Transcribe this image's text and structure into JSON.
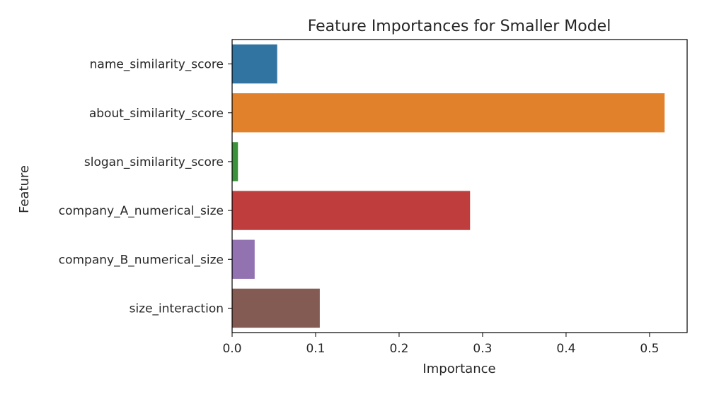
{
  "chart_data": {
    "type": "bar",
    "orientation": "horizontal",
    "title": "Feature Importances for Smaller Model",
    "xlabel": "Importance",
    "ylabel": "Feature",
    "categories": [
      "name_similarity_score",
      "about_similarity_score",
      "slogan_similarity_score",
      "company_A_numerical_size",
      "company_B_numerical_size",
      "size_interaction"
    ],
    "values": [
      0.054,
      0.518,
      0.007,
      0.285,
      0.027,
      0.105
    ],
    "colors": [
      "#3274a1",
      "#e1812c",
      "#3a923a",
      "#c03d3e",
      "#9372b2",
      "#845b53"
    ],
    "xlim": [
      0,
      0.545
    ],
    "xticks": [
      0.0,
      0.1,
      0.2,
      0.3,
      0.4,
      0.5
    ],
    "xtick_labels": [
      "0.0",
      "0.1",
      "0.2",
      "0.3",
      "0.4",
      "0.5"
    ],
    "grid": false,
    "legend": "none"
  }
}
